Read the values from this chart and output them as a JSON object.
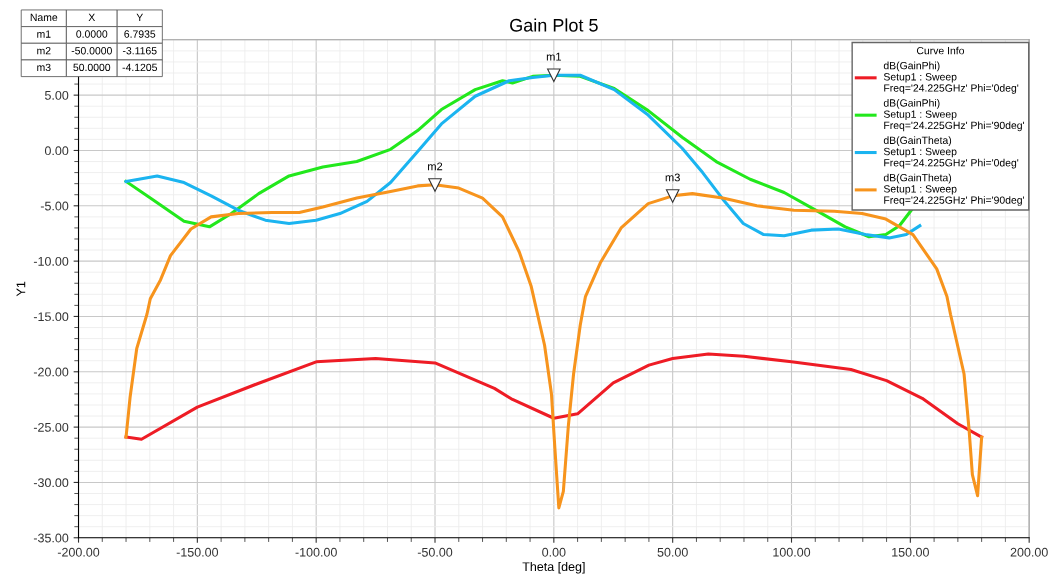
{
  "chart_data": {
    "type": "line",
    "title": "Gain Plot 5",
    "xlabel": "Theta [deg]",
    "ylabel": "Y1",
    "xlim": [
      -200,
      200
    ],
    "ylim": [
      -35,
      10
    ],
    "xticks": [
      {
        "value": -200,
        "label": "-200.00"
      },
      {
        "value": -150,
        "label": "-150.00"
      },
      {
        "value": -100,
        "label": "-100.00"
      },
      {
        "value": -50,
        "label": "-50.00"
      },
      {
        "value": 0,
        "label": "0.00"
      },
      {
        "value": 50,
        "label": "50.00"
      },
      {
        "value": 100,
        "label": "100.00"
      },
      {
        "value": 150,
        "label": "150.00"
      },
      {
        "value": 200,
        "label": "200.00"
      }
    ],
    "yticks": [
      {
        "value": -35,
        "label": "-35.00"
      },
      {
        "value": -30,
        "label": "-30.00"
      },
      {
        "value": -25,
        "label": "-25.00"
      },
      {
        "value": -20,
        "label": "-20.00"
      },
      {
        "value": -15,
        "label": "-15.00"
      },
      {
        "value": -10,
        "label": "-10.00"
      },
      {
        "value": -5,
        "label": "-5.00"
      },
      {
        "value": 0,
        "label": "0.00"
      },
      {
        "value": 5,
        "label": "5.00"
      }
    ],
    "grid": true,
    "legend": "top right",
    "legend_title": "Curve Info",
    "marker": "none",
    "line_style": "solid",
    "series": [
      {
        "name": "dB(GainPhi)\nSetup1 : Sweep\nFreq='24.225GHz' Phi='0deg'",
        "color": "#ee1c25",
        "x": [
          -180,
          -173.5,
          -150,
          -125,
          -100,
          -75,
          -50,
          -25,
          -17.4,
          0,
          10,
          25,
          40,
          50,
          65,
          80,
          100,
          125,
          140,
          155,
          170,
          180
        ],
        "values": [
          -25.9,
          -26.1,
          -23.2,
          -21.1,
          -19.1,
          -18.8,
          -19.2,
          -21.5,
          -22.5,
          -24.2,
          -23.8,
          -21.0,
          -19.4,
          -18.8,
          -18.4,
          -18.6,
          -19.1,
          -19.8,
          -20.8,
          -22.4,
          -24.7,
          -25.9
        ]
      },
      {
        "name": "dB(GainPhi)\nSetup1 : Sweep\nFreq='24.225GHz' Phi='90deg'",
        "color": "#22e81c",
        "x": [
          -180,
          -168.4,
          -155.6,
          -144.9,
          -135.7,
          -124.2,
          -111.4,
          -97.2,
          -82.9,
          -68.7,
          -57.3,
          -47.3,
          -33.1,
          -21.6,
          -17.4,
          -8.9,
          0,
          11.1,
          25.4,
          39.7,
          54,
          68.3,
          82.6,
          96.9,
          111.1,
          122.6,
          132.6,
          139.7,
          145.4,
          150.4
        ],
        "values": [
          -2.8,
          -4.5,
          -6.4,
          -6.9,
          -5.7,
          -3.9,
          -2.3,
          -1.5,
          -1.0,
          0.1,
          1.8,
          3.7,
          5.5,
          6.3,
          6.1,
          6.7,
          6.8,
          6.7,
          5.6,
          3.6,
          1.2,
          -1.0,
          -2.6,
          -3.8,
          -5.5,
          -6.9,
          -7.8,
          -7.6,
          -6.8,
          -5.4
        ]
      },
      {
        "name": "dB(GainTheta)\nSetup1 : Sweep\nFreq='24.225GHz' Phi='0deg'",
        "color": "#1bb4f0",
        "x": [
          -180,
          -166.9,
          -155.6,
          -144.2,
          -132.8,
          -121.4,
          -111.4,
          -100,
          -90,
          -78.6,
          -68.7,
          -57.3,
          -47.3,
          -33.1,
          -18.8,
          -8.9,
          0,
          11.1,
          25.4,
          39.7,
          54,
          62.6,
          71.1,
          79.7,
          88.3,
          96.9,
          108.3,
          119.7,
          131.1,
          141.1,
          148.3,
          154
        ],
        "values": [
          -2.8,
          -2.3,
          -2.9,
          -4.1,
          -5.4,
          -6.3,
          -6.6,
          -6.3,
          -5.7,
          -4.6,
          -2.9,
          -0.1,
          2.4,
          4.9,
          6.3,
          6.6,
          6.8,
          6.8,
          5.5,
          3.2,
          0.2,
          -2.0,
          -4.4,
          -6.6,
          -7.6,
          -7.7,
          -7.2,
          -7.1,
          -7.6,
          -7.9,
          -7.6,
          -6.8
        ]
      },
      {
        "name": "dB(GainTheta)\nSetup1 : Sweep\nFreq='24.225GHz' Phi='90deg'",
        "color": "#f7941d",
        "x": [
          -180,
          -178.3,
          -175.5,
          -171.2,
          -169.8,
          -165.5,
          -161.3,
          -152.7,
          -144.2,
          -132.8,
          -118.5,
          -107.1,
          -97.2,
          -82.9,
          -68.7,
          -57.3,
          -50,
          -40,
          -30,
          -21.6,
          -14.5,
          -9.5,
          -3.9,
          -1,
          0.4,
          2.1,
          4,
          6.1,
          8.3,
          11.1,
          13.3,
          19.7,
          28.3,
          39.7,
          50,
          58.3,
          71.1,
          85.4,
          101,
          118,
          129.7,
          139.7,
          151.1,
          161.1,
          165.4,
          166.9,
          172.6,
          174.7,
          176.1,
          178.3,
          180
        ],
        "values": [
          -25.9,
          -22.3,
          -17.9,
          -14.8,
          -13.4,
          -11.7,
          -9.5,
          -7.1,
          -6.0,
          -5.7,
          -5.6,
          -5.6,
          -5.1,
          -4.3,
          -3.7,
          -3.2,
          -3.1,
          -3.4,
          -4.3,
          -6.0,
          -9.2,
          -12.3,
          -17.6,
          -22.0,
          -26.8,
          -32.3,
          -30.8,
          -24.9,
          -20.2,
          -15.8,
          -13.2,
          -10.1,
          -7.0,
          -4.8,
          -4.1,
          -3.9,
          -4.3,
          -5.0,
          -5.4,
          -5.5,
          -5.7,
          -6.2,
          -7.6,
          -10.7,
          -13.2,
          -14.8,
          -20.2,
          -25.2,
          -29.3,
          -31.2,
          -25.9
        ]
      }
    ],
    "annotations": [
      {
        "text": "m1",
        "x": 0,
        "y": 6.7935
      },
      {
        "text": "m2",
        "x": -50,
        "y": -3.1165
      },
      {
        "text": "m3",
        "x": 50,
        "y": -4.1205
      },
      "Name",
      "X",
      "Y",
      "m1",
      "0.0000",
      "6.7935",
      "m2",
      "-50.0000",
      "-3.1165",
      "m3",
      "50.0000",
      "-4.1205"
    ]
  }
}
